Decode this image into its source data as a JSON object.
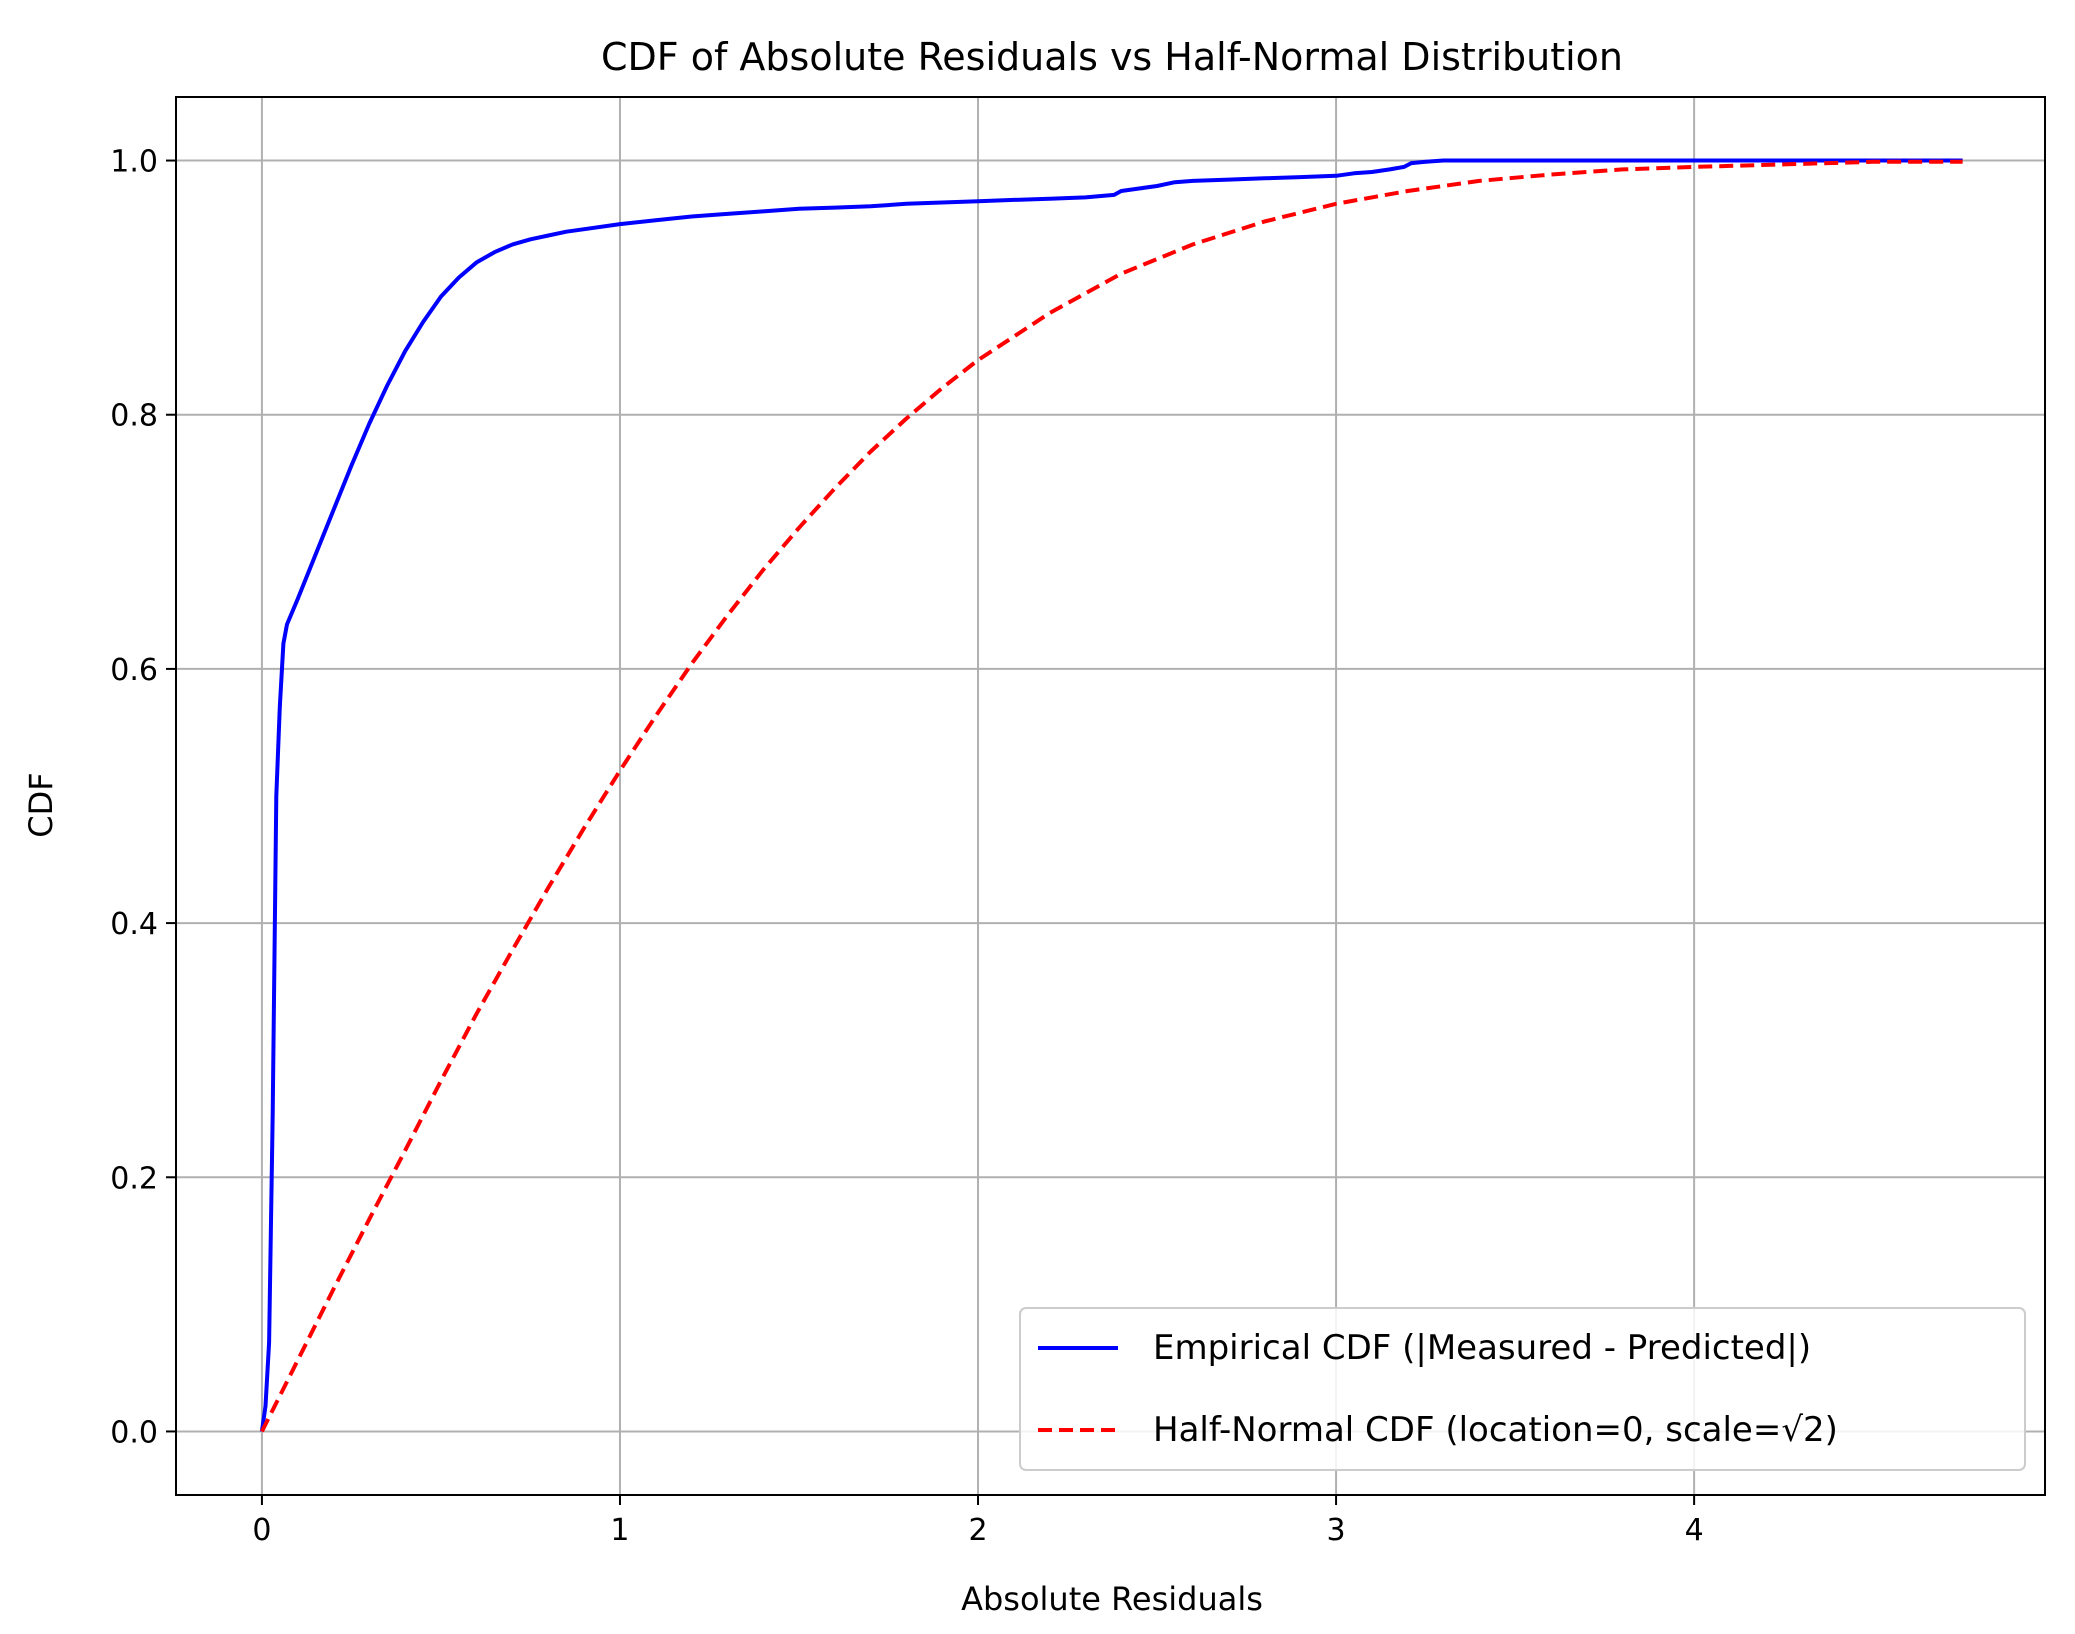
{
  "chart_data": {
    "type": "line",
    "title": "CDF of Absolute Residuals vs Half-Normal Distribution",
    "xlabel": "Absolute Residuals",
    "ylabel": "CDF",
    "xlim": [
      -0.24,
      4.98
    ],
    "ylim": [
      -0.05,
      1.05
    ],
    "x_ticks": [
      0,
      1,
      2,
      3,
      4
    ],
    "x_tick_labels": [
      "0",
      "1",
      "2",
      "3",
      "4"
    ],
    "y_ticks": [
      0.0,
      0.2,
      0.4,
      0.6,
      0.8,
      1.0
    ],
    "y_tick_labels": [
      "0.0",
      "0.2",
      "0.4",
      "0.6",
      "0.8",
      "1.0"
    ],
    "grid": true,
    "legend_position": "lower-right",
    "series": [
      {
        "name": "Empirical CDF (|Measured - Predicted|)",
        "color": "#0000ff",
        "style": "solid",
        "x": [
          0,
          0.01,
          0.02,
          0.03,
          0.04,
          0.05,
          0.06,
          0.07,
          0.1,
          0.15,
          0.2,
          0.25,
          0.3,
          0.35,
          0.4,
          0.45,
          0.5,
          0.55,
          0.6,
          0.65,
          0.7,
          0.75,
          0.8,
          0.85,
          0.9,
          1.0,
          1.1,
          1.2,
          1.3,
          1.4,
          1.5,
          1.6,
          1.7,
          1.8,
          1.9,
          2.0,
          2.1,
          2.2,
          2.3,
          2.38,
          2.4,
          2.45,
          2.5,
          2.55,
          2.6,
          2.7,
          2.8,
          2.9,
          3.0,
          3.05,
          3.1,
          3.15,
          3.19,
          3.21,
          3.25,
          3.3,
          3.5,
          4.0,
          4.5,
          4.75
        ],
        "values": [
          0.0,
          0.02,
          0.07,
          0.25,
          0.5,
          0.57,
          0.62,
          0.635,
          0.655,
          0.69,
          0.725,
          0.76,
          0.793,
          0.823,
          0.85,
          0.873,
          0.893,
          0.908,
          0.92,
          0.928,
          0.934,
          0.938,
          0.941,
          0.944,
          0.946,
          0.95,
          0.953,
          0.956,
          0.958,
          0.96,
          0.962,
          0.963,
          0.964,
          0.966,
          0.967,
          0.968,
          0.969,
          0.97,
          0.971,
          0.973,
          0.976,
          0.978,
          0.98,
          0.983,
          0.984,
          0.985,
          0.986,
          0.987,
          0.988,
          0.99,
          0.991,
          0.993,
          0.995,
          0.998,
          0.999,
          1.0,
          1.0,
          1.0,
          1.0,
          1.0
        ]
      },
      {
        "name": "Half-Normal CDF (location=0, scale=√2)",
        "color": "#ff0000",
        "style": "dashed",
        "x": [
          0,
          0.1,
          0.2,
          0.3,
          0.4,
          0.5,
          0.6,
          0.7,
          0.8,
          0.9,
          1.0,
          1.1,
          1.2,
          1.3,
          1.4,
          1.5,
          1.6,
          1.7,
          1.8,
          1.9,
          2.0,
          2.2,
          2.4,
          2.6,
          2.8,
          3.0,
          3.2,
          3.4,
          3.6,
          3.8,
          4.0,
          4.25,
          4.5,
          4.75
        ],
        "values": [
          0.0,
          0.056,
          0.112,
          0.167,
          0.221,
          0.276,
          0.329,
          0.379,
          0.428,
          0.475,
          0.52,
          0.563,
          0.604,
          0.642,
          0.678,
          0.711,
          0.742,
          0.771,
          0.797,
          0.821,
          0.843,
          0.88,
          0.911,
          0.934,
          0.952,
          0.966,
          0.976,
          0.984,
          0.989,
          0.993,
          0.995,
          0.997,
          0.999,
          0.999
        ]
      }
    ]
  }
}
